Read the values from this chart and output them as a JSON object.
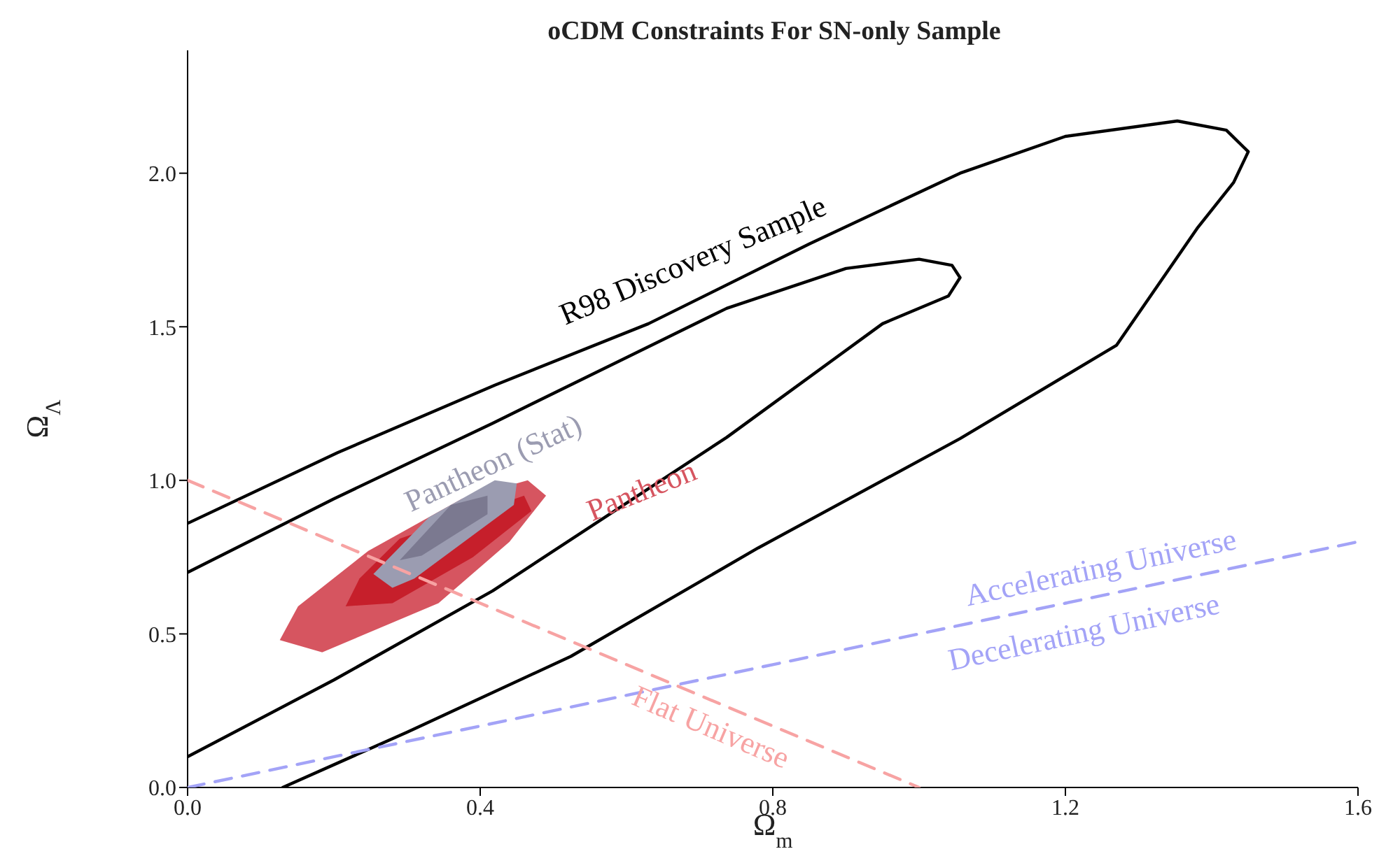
{
  "chart_data": {
    "type": "line",
    "title": "oCDM Constraints For SN-only Sample",
    "xlabel": "Ω$_{m}$",
    "ylabel": "Ω$_{Λ}$",
    "xlim": [
      0,
      1.6
    ],
    "ylim": [
      0,
      2.4
    ],
    "xticks": [
      {
        "value": 0,
        "label": "0.0"
      },
      {
        "value": 0.4,
        "label": "0.4"
      },
      {
        "value": 0.8,
        "label": "0.8"
      },
      {
        "value": 1.2,
        "label": "1.2"
      },
      {
        "value": 1.6,
        "label": "1.6"
      }
    ],
    "yticks": [
      {
        "value": 0,
        "label": "0.0"
      },
      {
        "value": 0.5,
        "label": "0.5"
      },
      {
        "value": 1,
        "label": "1.0"
      },
      {
        "value": 1.5,
        "label": "1.5"
      },
      {
        "value": 2,
        "label": "2.0"
      }
    ],
    "grid": false,
    "legend": false,
    "marker": "none",
    "series": [
      {
        "type": "line",
        "name": "R98 Discovery Sample",
        "color": "#000000",
        "line_style": "solid",
        "x": [
          0,
          0.205,
          0.42,
          0.63,
          0.85,
          1.056,
          1.2,
          1.353,
          1.42,
          1.45,
          1.43,
          1.38,
          1.27,
          1.056,
          0.78,
          0.524,
          0.3,
          0.13
        ],
        "values": [
          0.86,
          1.09,
          1.31,
          1.51,
          1.77,
          2.0,
          2.12,
          2.17,
          2.14,
          2.07,
          1.97,
          1.82,
          1.44,
          1.136,
          0.78,
          0.427,
          0.18,
          0
        ]
      },
      {
        "type": "line",
        "color": "#000000",
        "line_style": "solid",
        "x": [
          0,
          0.2,
          0.417,
          0.737,
          0.9,
          1.0,
          1.045,
          1.056,
          1.04,
          0.95,
          0.737,
          0.417,
          0.2,
          0
        ],
        "values": [
          0.7,
          0.94,
          1.186,
          1.56,
          1.69,
          1.72,
          1.7,
          1.66,
          1.6,
          1.51,
          1.14,
          0.64,
          0.35,
          0.1
        ]
      },
      {
        "type": "area",
        "name": "Pantheon",
        "color": "#d65560",
        "x": [
          0.126,
          0.184,
          0.343,
          0.44,
          0.49,
          0.465,
          0.375,
          0.247,
          0.151
        ],
        "values": [
          0.48,
          0.44,
          0.6,
          0.8,
          0.95,
          1.0,
          0.94,
          0.77,
          0.59
        ]
      },
      {
        "type": "area",
        "color": "#c61f2b",
        "x": [
          0.216,
          0.28,
          0.39,
          0.47,
          0.46,
          0.29,
          0.235
        ],
        "values": [
          0.59,
          0.6,
          0.75,
          0.9,
          0.95,
          0.81,
          0.68
        ]
      },
      {
        "type": "area",
        "name": "Pantheon (Stat)",
        "color": "#9b9cb1",
        "x": [
          0.254,
          0.28,
          0.31,
          0.446,
          0.45,
          0.42,
          0.33
        ],
        "values": [
          0.695,
          0.65,
          0.68,
          0.92,
          0.99,
          1.0,
          0.88
        ]
      },
      {
        "type": "area",
        "color": "#7b7990",
        "x": [
          0.29,
          0.32,
          0.41,
          0.41,
          0.36
        ],
        "values": [
          0.74,
          0.755,
          0.89,
          0.95,
          0.92
        ]
      },
      {
        "type": "line",
        "name": "Flat Universe",
        "color": "#f7a3a3",
        "line_style": "dashed",
        "x": [
          0,
          0.2,
          0.4,
          0.6,
          0.8,
          1.0
        ],
        "values": [
          1,
          0.8,
          0.6,
          0.4,
          0.2,
          0
        ]
      },
      {
        "type": "line",
        "name": "Accelerating Universe",
        "color": "#a3a3f7",
        "line_style": "dashed",
        "x": [
          0,
          0.4,
          0.8,
          1.2,
          1.6
        ],
        "values": [
          0,
          0.2,
          0.4,
          0.6,
          0.8
        ]
      }
    ],
    "annotations": [
      "Decelerating Universe"
    ]
  }
}
